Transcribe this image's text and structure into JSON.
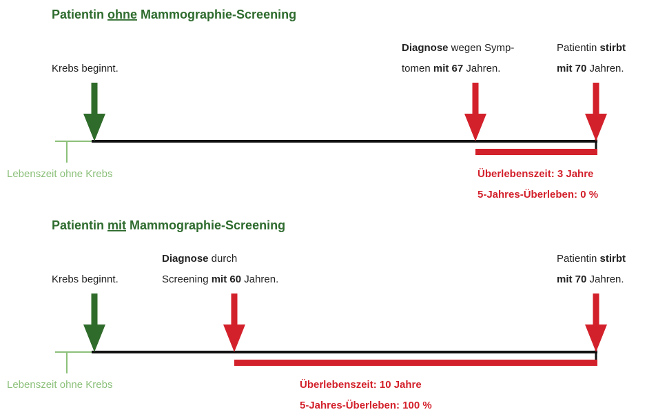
{
  "panels": [
    {
      "title": [
        {
          "text": "Patientin "
        },
        {
          "text": "ohne",
          "underline": true
        },
        {
          "text": " Mammographie-Screening"
        }
      ],
      "start_label": "Krebs beginnt.",
      "life_label": "Lebenszeit ohne Krebs",
      "diagnosis": [
        [
          {
            "text": "Diagnose",
            "bold": true
          },
          {
            "text": " wegen Symp-"
          }
        ],
        [
          {
            "text": "tomen "
          },
          {
            "text": "mit 67",
            "bold": true
          },
          {
            "text": " Jahren."
          }
        ]
      ],
      "death": [
        [
          {
            "text": "Patientin "
          },
          {
            "text": "stirbt",
            "bold": true
          }
        ],
        [
          {
            "text": "mit 70",
            "bold": true
          },
          {
            "text": " Jahren."
          }
        ]
      ],
      "survival": [
        "Überlebenszeit: 3 Jahre",
        "5-Jahres-Überleben: 0 %"
      ]
    },
    {
      "title": [
        {
          "text": "Patientin "
        },
        {
          "text": "mit",
          "underline": true
        },
        {
          "text": " Mammographie-Screening"
        }
      ],
      "start_label": "Krebs beginnt.",
      "life_label": "Lebenszeit ohne Krebs",
      "diagnosis": [
        [
          {
            "text": "Diagnose",
            "bold": true
          },
          {
            "text": " durch"
          }
        ],
        [
          {
            "text": "Screening "
          },
          {
            "text": "mit 60",
            "bold": true
          },
          {
            "text": " Jahren."
          }
        ]
      ],
      "death": [
        [
          {
            "text": "Patientin "
          },
          {
            "text": "stirbt",
            "bold": true
          }
        ],
        [
          {
            "text": "mit 70",
            "bold": true
          },
          {
            "text": " Jahren."
          }
        ]
      ],
      "survival": [
        "Überlebenszeit: 10 Jahre",
        "5-Jahres-Überleben: 100 %"
      ]
    }
  ]
}
